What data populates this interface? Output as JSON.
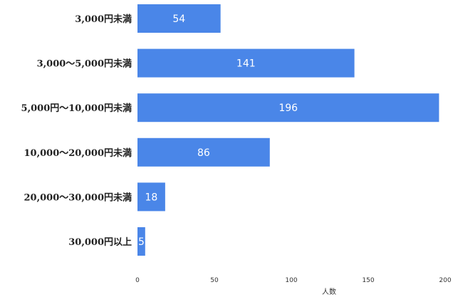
{
  "chart_data": {
    "type": "bar",
    "orientation": "horizontal",
    "categories": [
      "3,000円未満",
      "3,000〜5,000円未満",
      "5,000円〜10,000円未満",
      "10,000〜20,000円未満",
      "20,000〜30,000円未満",
      "30,000円以上"
    ],
    "values": [
      54,
      141,
      196,
      86,
      18,
      5
    ],
    "data_labels": [
      "54",
      "141",
      "196",
      "86",
      "18",
      "5"
    ],
    "title": "",
    "xlabel": "人数",
    "ylabel": "",
    "xlim": [
      0,
      200
    ],
    "x_ticks": [
      0,
      50,
      100,
      150,
      200
    ],
    "grid": false,
    "legend": "none",
    "bar_color": "#4a86e8",
    "label_color": "#ffffff"
  }
}
